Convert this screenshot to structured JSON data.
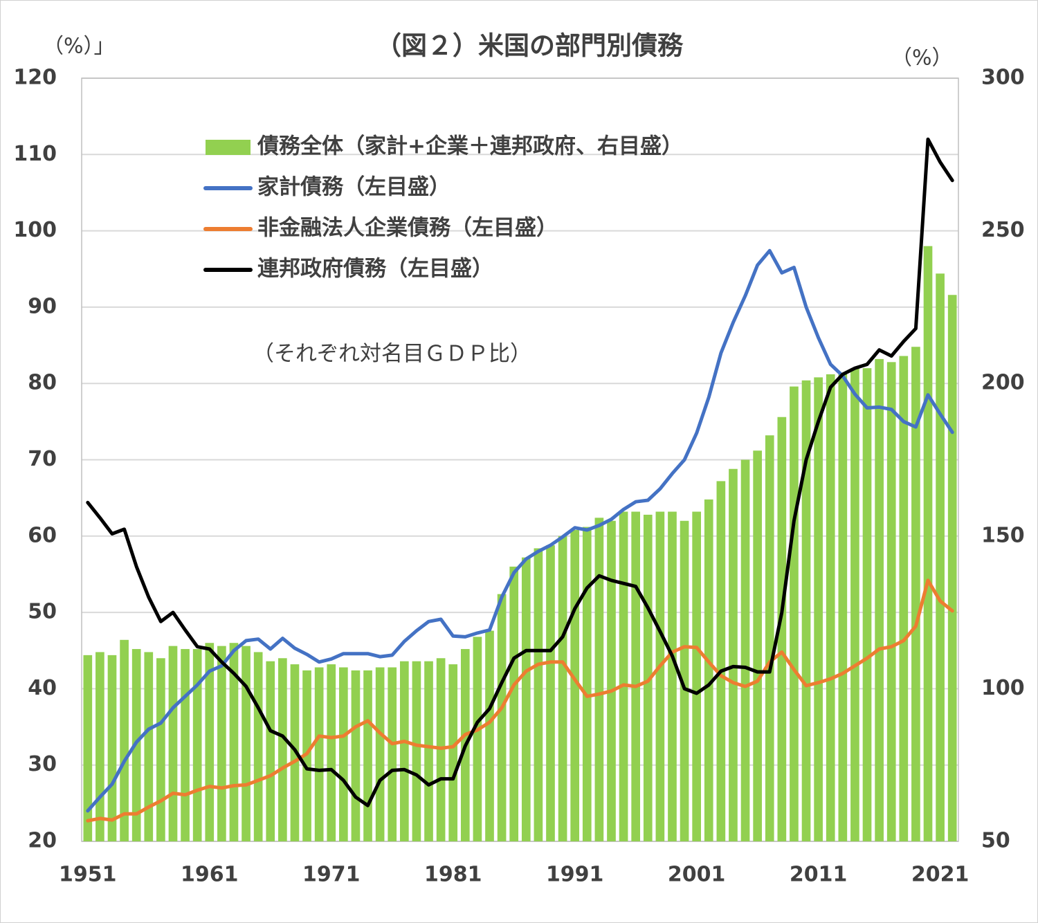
{
  "chart_data": {
    "type": "bar-line",
    "title": "（図２）米国の部門別債務",
    "y_label": "（%）」",
    "y2_label": "（%）",
    "annotation": "（それぞれ対名目ＧＤＰ比）",
    "categories": [
      "1951",
      null,
      null,
      null,
      null,
      null,
      null,
      null,
      null,
      null,
      "1961",
      null,
      null,
      null,
      null,
      null,
      null,
      null,
      null,
      null,
      "1971",
      null,
      null,
      null,
      null,
      null,
      null,
      null,
      null,
      null,
      "1981",
      null,
      null,
      null,
      null,
      null,
      null,
      null,
      null,
      null,
      "1991",
      null,
      null,
      null,
      null,
      null,
      null,
      null,
      null,
      null,
      "2001",
      null,
      null,
      null,
      null,
      null,
      null,
      null,
      null,
      null,
      "2011",
      null,
      null,
      null,
      null,
      null,
      null,
      null,
      null,
      null,
      "2021",
      null
    ],
    "ylim": [
      20,
      120
    ],
    "yticks": [
      20,
      30,
      40,
      50,
      60,
      70,
      80,
      90,
      100,
      110,
      120
    ],
    "y2lim": [
      50,
      300
    ],
    "y2ticks": [
      50,
      100,
      150,
      200,
      250,
      300
    ],
    "grid": true,
    "series": [
      {
        "name": "債務全体（家計+企業＋連邦政府、右目盛）",
        "type": "bar",
        "axis": "y2",
        "color": "#92d050",
        "values": [
          111,
          112,
          111,
          116,
          113,
          112,
          110,
          114,
          113,
          113,
          115,
          114,
          115,
          114,
          112,
          109,
          110,
          108,
          106,
          107,
          108,
          107,
          106,
          106,
          107,
          107,
          109,
          109,
          109,
          110,
          108,
          113,
          117,
          119,
          131,
          140,
          143,
          146,
          147,
          150,
          152,
          153,
          156,
          155,
          158,
          158,
          157,
          158,
          158,
          155,
          158,
          162,
          168,
          172,
          175,
          178,
          183,
          189,
          199,
          201,
          202,
          203,
          203,
          205,
          205,
          208,
          207,
          209,
          212,
          245,
          236,
          229
        ]
      },
      {
        "name": "家計債務（左目盛）",
        "type": "line",
        "color": "#4472c4",
        "values": [
          24,
          25.8,
          27.5,
          30.5,
          33,
          34.7,
          35.5,
          37.5,
          39,
          40.5,
          42.3,
          43,
          45,
          46.3,
          46.5,
          45.2,
          46.6,
          45.3,
          44.5,
          43.5,
          43.9,
          44.6,
          44.6,
          44.6,
          44.2,
          44.4,
          46.2,
          47.6,
          48.8,
          49.1,
          46.9,
          46.8,
          47.3,
          47.7,
          52,
          55.2,
          57,
          58,
          58.8,
          59.9,
          61.1,
          60.8,
          61.4,
          62.2,
          63.5,
          64.5,
          64.7,
          66.2,
          68.2,
          70,
          73.5,
          78.2,
          84,
          88,
          91.5,
          95.5,
          97.4,
          94.5,
          95.2,
          90,
          86,
          82.5,
          81,
          78.6,
          76.8,
          76.9,
          76.6,
          75,
          74.3,
          78.5,
          76,
          73.6
        ]
      },
      {
        "name": "非金融法人企業債務（左目盛）",
        "type": "line",
        "color": "#ed7d31",
        "values": [
          22.7,
          23,
          22.8,
          23.6,
          23.6,
          24.5,
          25.3,
          26.3,
          26.1,
          26.7,
          27.2,
          27,
          27.3,
          27.4,
          28,
          28.6,
          29.6,
          30.5,
          31.5,
          33.8,
          33.6,
          33.8,
          35,
          35.8,
          34.2,
          32.8,
          33.1,
          32.6,
          32.4,
          32.2,
          32.4,
          34,
          34.6,
          35.6,
          37.5,
          40.5,
          42.3,
          43.2,
          43.5,
          43.5,
          41.2,
          39,
          39.3,
          39.7,
          40.5,
          40.3,
          41,
          43,
          44.8,
          45.5,
          45.4,
          43.5,
          41.7,
          40.8,
          40.3,
          41,
          43.5,
          44.8,
          42.5,
          40.4,
          40.8,
          41.3,
          42,
          43,
          44,
          45.2,
          45.5,
          46.3,
          48.2,
          54.2,
          51.5,
          50.2
        ]
      },
      {
        "name": "連邦政府債務（左目盛）",
        "type": "line",
        "color": "#000000",
        "values": [
          64.4,
          62.4,
          60.3,
          60.9,
          56,
          52,
          48.8,
          50,
          47.7,
          45.5,
          45.2,
          43.5,
          42,
          40.3,
          37.5,
          34.5,
          33.8,
          32,
          29.5,
          29.3,
          29.4,
          28,
          25.8,
          24.7,
          28,
          29.3,
          29.4,
          28.7,
          27.4,
          28.2,
          28.2,
          32.5,
          35.6,
          37.4,
          40.8,
          44,
          45,
          45,
          45,
          46.8,
          50.5,
          53.2,
          54.8,
          54.2,
          53.8,
          53.4,
          50.6,
          47.5,
          44.3,
          40,
          39.4,
          40.5,
          42.3,
          42.9,
          42.8,
          42.2,
          42.2,
          50,
          62,
          70,
          75,
          79.5,
          81.2,
          82,
          82.5,
          84.4,
          83.6,
          85.5,
          87.2,
          112,
          109,
          106.6
        ]
      }
    ]
  }
}
